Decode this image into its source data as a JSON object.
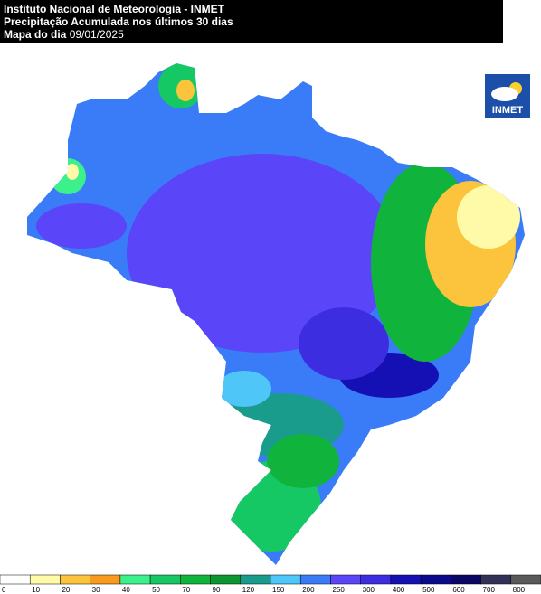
{
  "header": {
    "title": "Instituto Nacional de Meteorologia - INMET",
    "subtitle": "Precipitação Acumulada nos últimos 30 dias",
    "date_label": "Mapa do dia",
    "date": "09/01/2025"
  },
  "logo": {
    "text": "INMET"
  },
  "legend": {
    "labels": [
      0,
      10,
      20,
      30,
      40,
      50,
      70,
      90,
      120,
      150,
      200,
      250,
      300,
      400,
      500,
      600,
      700,
      800
    ],
    "colors": [
      "#ffffff",
      "#fffaa8",
      "#fbc43c",
      "#f99a1c",
      "#3cf08c",
      "#16c864",
      "#10b43c",
      "#0c9632",
      "#1a9c8c",
      "#4ec6f8",
      "#3a7cf8",
      "#5a46f8",
      "#3c2ee0",
      "#1410b4",
      "#0c0a8c",
      "#0a0864",
      "#323258",
      "#5a5a5a"
    ]
  }
}
